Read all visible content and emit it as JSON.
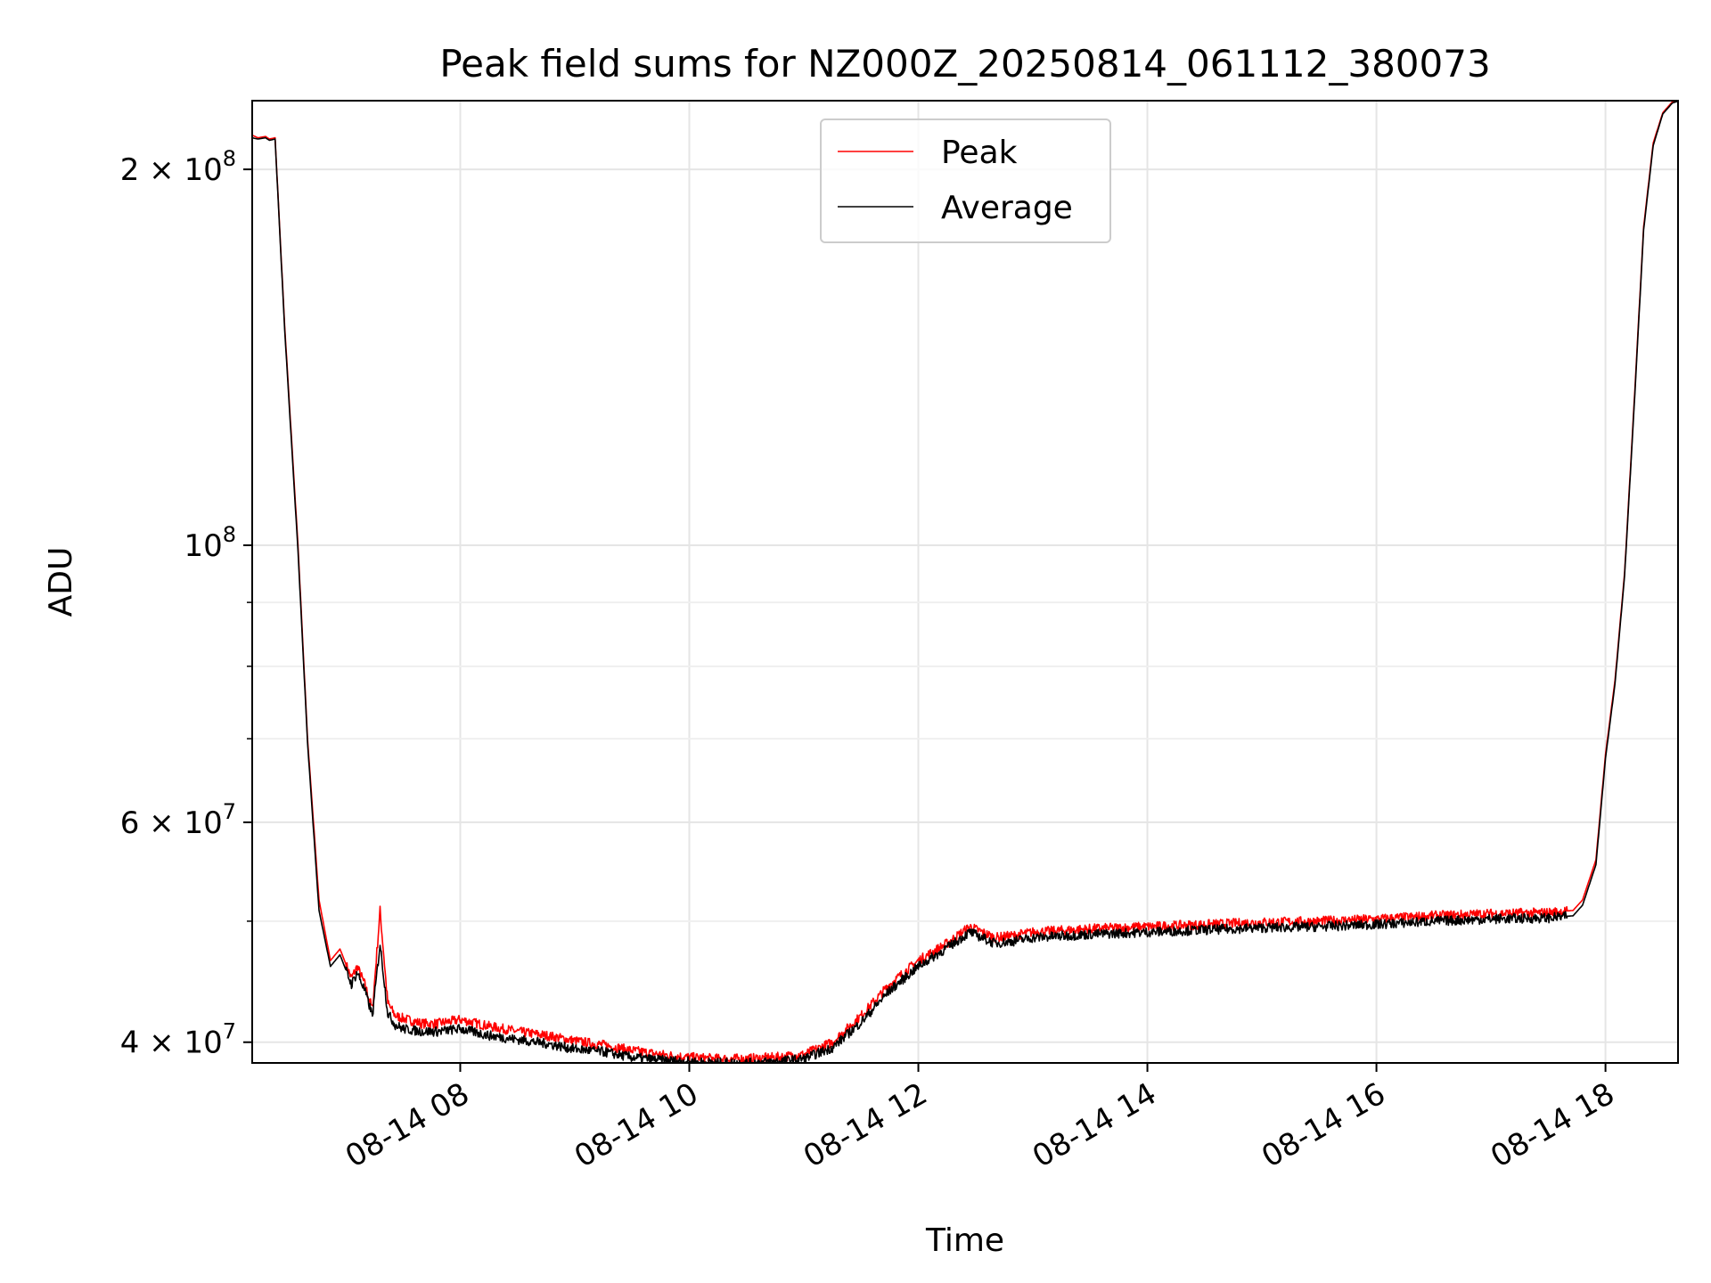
{
  "chart_data": {
    "type": "line",
    "title": "Peak field sums for NZ000Z_20250814_061112_380073",
    "xlabel": "Time",
    "ylabel": "ADU",
    "y_scale": "log",
    "ylim": [
      38500000,
      227000000
    ],
    "xlim": [
      "2025-08-14 06:11",
      "2025-08-14 18:38"
    ],
    "x_tick_labels": [
      "08-14 08",
      "08-14 10",
      "08-14 12",
      "08-14 14",
      "08-14 16",
      "08-14 18"
    ],
    "x_tick_values": [
      "2025-08-14 08:00",
      "2025-08-14 10:00",
      "2025-08-14 12:00",
      "2025-08-14 14:00",
      "2025-08-14 16:00",
      "2025-08-14 18:00"
    ],
    "y_tick_labels": [
      {
        "value": 40000000,
        "mant": "4",
        "exp": "7"
      },
      {
        "value": 60000000,
        "mant": "6",
        "exp": "7"
      },
      {
        "value": 100000000,
        "mant": "",
        "exp": "8"
      },
      {
        "value": 200000000,
        "mant": "2",
        "exp": "8"
      }
    ],
    "y_minor_ticks": [
      50000000,
      70000000,
      80000000,
      90000000
    ],
    "grid": true,
    "legend_position": "upper center",
    "x": [
      "06:11",
      "06:14",
      "06:18",
      "06:20",
      "06:23",
      "06:28",
      "06:35",
      "06:40",
      "06:46",
      "06:52",
      "06:57",
      "07:03",
      "07:06",
      "07:10",
      "07:14",
      "07:18",
      "07:22",
      "07:26",
      "07:30",
      "07:35",
      "07:40",
      "07:48",
      "08:00",
      "08:15",
      "08:30",
      "08:45",
      "09:00",
      "09:15",
      "09:30",
      "09:45",
      "10:00",
      "10:15",
      "10:30",
      "10:45",
      "11:00",
      "11:15",
      "11:30",
      "11:45",
      "12:00",
      "12:15",
      "12:27",
      "12:40",
      "12:50",
      "13:00",
      "13:30",
      "14:00",
      "14:30",
      "15:00",
      "15:30",
      "16:00",
      "16:30",
      "17:00",
      "17:30",
      "17:43",
      "17:48",
      "17:55",
      "18:00",
      "18:05",
      "18:10",
      "18:15",
      "18:20",
      "18:25",
      "18:30",
      "18:35",
      "18:38"
    ],
    "series": [
      {
        "name": "Peak",
        "color": "#ff0000",
        "values": [
          213000000,
          212000000,
          212500000,
          211500000,
          212000000,
          150000000,
          100000000,
          70000000,
          52000000,
          46500000,
          47500000,
          45000000,
          46000000,
          44500000,
          42500000,
          51000000,
          43000000,
          42000000,
          41800000,
          41600000,
          41400000,
          41400000,
          41700000,
          41200000,
          40800000,
          40500000,
          40100000,
          39800000,
          39400000,
          39100000,
          38900000,
          38800000,
          38800000,
          38900000,
          39100000,
          40000000,
          42000000,
          44500000,
          46500000,
          48000000,
          49500000,
          48500000,
          48700000,
          49000000,
          49300000,
          49500000,
          49700000,
          49900000,
          50000000,
          50200000,
          50500000,
          50700000,
          50800000,
          51000000,
          52000000,
          56000000,
          68000000,
          78000000,
          95000000,
          130000000,
          180000000,
          210000000,
          222000000,
          226500000,
          227000000
        ]
      },
      {
        "name": "Average",
        "color": "#000000",
        "values": [
          212000000,
          211500000,
          212000000,
          211000000,
          211500000,
          149000000,
          99000000,
          69500000,
          51000000,
          46000000,
          47000000,
          44500000,
          45500000,
          44000000,
          42000000,
          48000000,
          42200000,
          41300000,
          41000000,
          40900000,
          40800000,
          40800000,
          41000000,
          40500000,
          40200000,
          39900000,
          39500000,
          39300000,
          38900000,
          38700000,
          38600000,
          38500000,
          38500000,
          38600000,
          38800000,
          39600000,
          41500000,
          44000000,
          46000000,
          47600000,
          49000000,
          48000000,
          48200000,
          48500000,
          48800000,
          49000000,
          49200000,
          49400000,
          49500000,
          49700000,
          50000000,
          50200000,
          50300000,
          50500000,
          51500000,
          55500000,
          67500000,
          77500000,
          94500000,
          129000000,
          179000000,
          209000000,
          221500000,
          226000000,
          226800000
        ]
      }
    ]
  }
}
